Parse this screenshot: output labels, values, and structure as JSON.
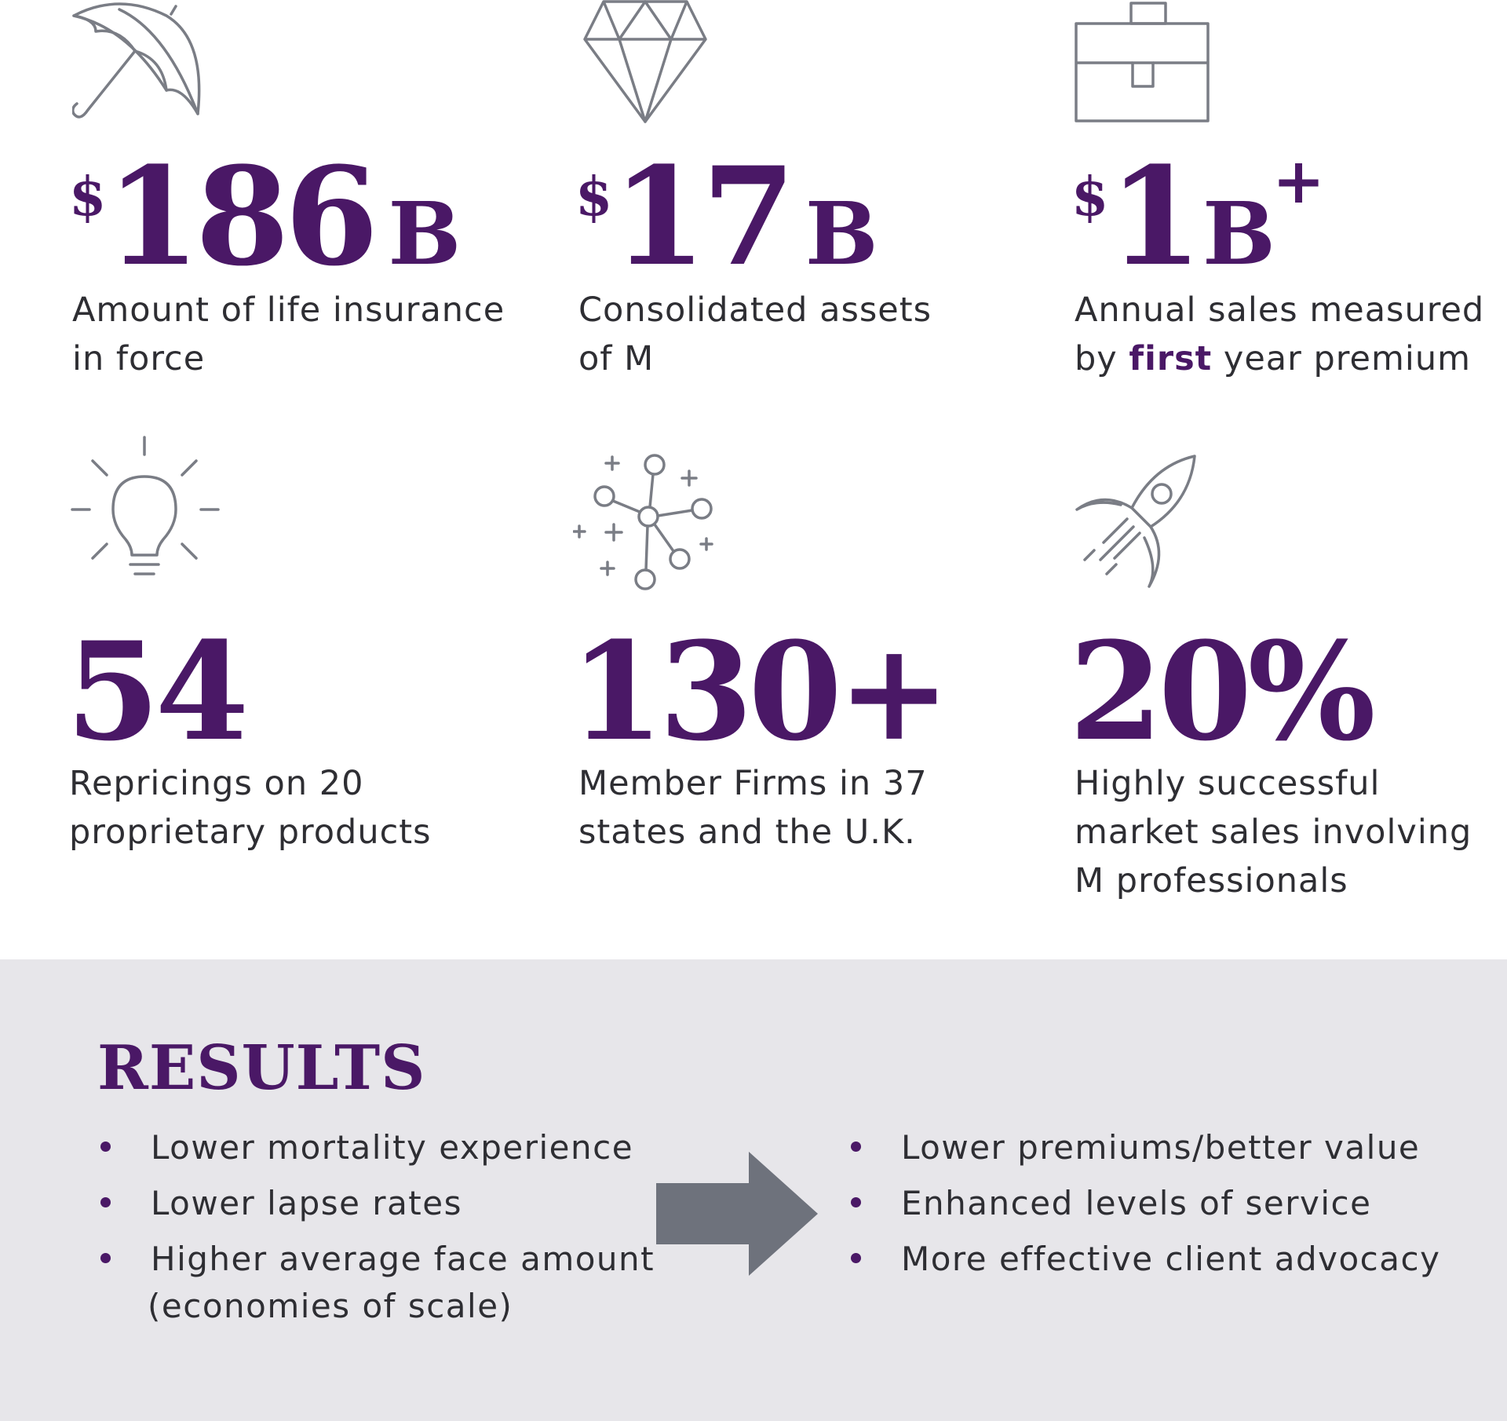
{
  "stats": [
    {
      "icon": "umbrella-icon",
      "currency": "$",
      "number": "186",
      "unit": "B",
      "suffix": "",
      "desc_lines": [
        "Amount of life insurance",
        "in force"
      ]
    },
    {
      "icon": "diamond-icon",
      "currency": "$",
      "number": "17",
      "unit": "B",
      "suffix": "",
      "desc_lines": [
        "Consolidated assets",
        "of M"
      ]
    },
    {
      "icon": "briefcase-icon",
      "currency": "$",
      "number": "1",
      "unit": "B",
      "suffix": "+",
      "desc_line1": "Annual sales measured",
      "desc_line2_pre": "by ",
      "desc_line2_hl": "first",
      "desc_line2_post": " year premium"
    },
    {
      "icon": "lightbulb-icon",
      "number": "54",
      "desc_lines": [
        "Repricings on 20",
        "proprietary products"
      ]
    },
    {
      "icon": "network-icon",
      "number": "130+",
      "desc_lines": [
        "Member Firms in 37",
        "states and the U.K."
      ]
    },
    {
      "icon": "rocket-icon",
      "number": "20%",
      "desc_lines": [
        "Highly successful",
        "market sales involving",
        "M professionals"
      ]
    }
  ],
  "results": {
    "title": "RESULTS",
    "left": [
      "Lower mortality experience",
      "Lower lapse rates",
      "Higher average face amount",
      "(economies of scale)"
    ],
    "right": [
      "Lower premiums/better value",
      "Enhanced levels of service",
      "More effective client advocacy"
    ],
    "arrow_icon": "right-arrow-icon"
  },
  "colors": {
    "accent": "#4a1866",
    "text": "#2e2e33",
    "icon_stroke": "#7a7d85",
    "results_bg": "#e7e6ea",
    "arrow": "#6e727c"
  }
}
